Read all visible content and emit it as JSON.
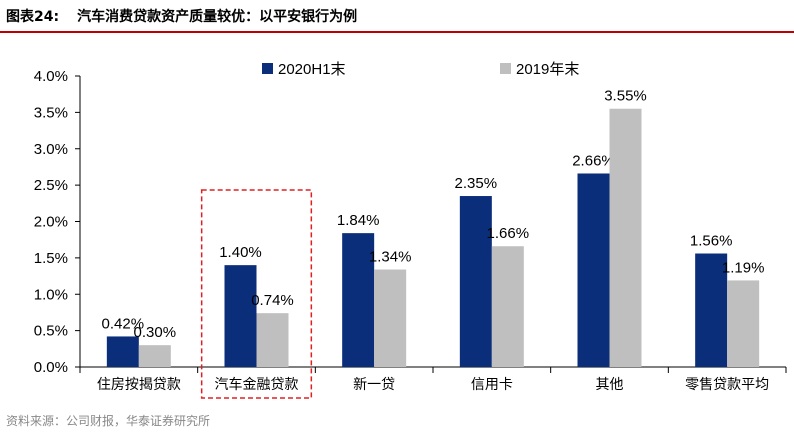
{
  "header": {
    "figure_label": "图表24:",
    "title": "汽车消费贷款资产质量较优：以平安银行为例"
  },
  "footer": {
    "source": "资料来源：公司财报，华泰证券研究所"
  },
  "colors": {
    "series_2020": "#0b2e7a",
    "series_2019": "#bfbfbf",
    "title_rule": "#c00000",
    "highlight_box": "#e02020"
  },
  "chart_data": {
    "type": "bar",
    "title": "",
    "xlabel": "",
    "ylabel": "",
    "categories": [
      "住房按揭贷款",
      "汽车金融贷款",
      "新一贷",
      "信用卡",
      "其他",
      "零售贷款平均"
    ],
    "series": [
      {
        "name": "2020H1末",
        "values": [
          0.42,
          1.4,
          1.84,
          2.35,
          2.66,
          1.56
        ],
        "labels": [
          "0.42%",
          "1.40%",
          "1.84%",
          "2.35%",
          "2.66%",
          "1.56%"
        ]
      },
      {
        "name": "2019年末",
        "values": [
          0.3,
          0.74,
          1.34,
          1.66,
          3.55,
          1.19
        ],
        "labels": [
          "0.30%",
          "0.74%",
          "1.34%",
          "1.66%",
          "3.55%",
          "1.19%"
        ]
      }
    ],
    "ylim": [
      0,
      4.0
    ],
    "yticks": [
      "0.0%",
      "0.5%",
      "1.0%",
      "1.5%",
      "2.0%",
      "2.5%",
      "3.0%",
      "3.5%",
      "4.0%"
    ],
    "grid": false,
    "legend": "top",
    "highlighted_category": "汽车金融贷款"
  }
}
